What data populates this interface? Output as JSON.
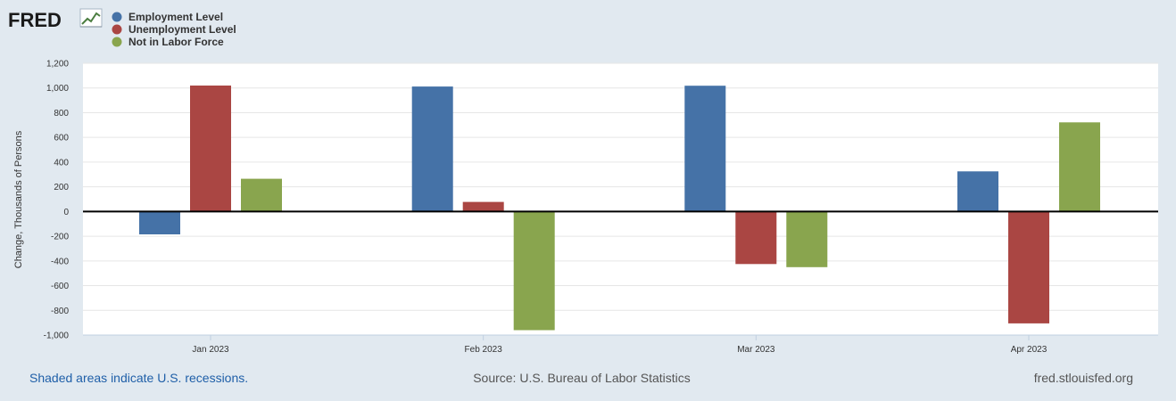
{
  "branding": {
    "logo_text": "FRED"
  },
  "colors": {
    "background": "#e1e9f0",
    "plot_background": "#ffffff",
    "grid": "#e6e6e6",
    "zero_line": "#000000",
    "link": "#1f5fa8"
  },
  "footer": {
    "recession_note": "Shaded areas indicate U.S. recessions.",
    "source": "Source: U.S. Bureau of Labor Statistics",
    "site": "fred.stlouisfed.org"
  },
  "chart_data": {
    "type": "bar",
    "title": "",
    "xlabel": "",
    "ylabel": "Change, Thousands of Persons",
    "ylim": [
      -1000,
      1200
    ],
    "yticks": [
      1200,
      1000,
      800,
      600,
      400,
      200,
      0,
      -200,
      -400,
      -600,
      -800,
      -1000
    ],
    "ytick_labels": [
      "1,200",
      "1,000",
      "800",
      "600",
      "400",
      "200",
      "0",
      "-200",
      "-400",
      "-600",
      "-800",
      "-1,000"
    ],
    "categories": [
      "Jan 2023",
      "Feb 2023",
      "Mar 2023",
      "Apr 2023"
    ],
    "legend_position": "top-left",
    "grid": true,
    "series": [
      {
        "name": "Employment Level",
        "color": "#4572a7",
        "values": [
          -185,
          1012,
          1018,
          325
        ]
      },
      {
        "name": "Unemployment Level",
        "color": "#aa4643",
        "values": [
          1020,
          78,
          -425,
          -905
        ]
      },
      {
        "name": "Not in Labor Force",
        "color": "#89a54e",
        "values": [
          265,
          -960,
          -450,
          722
        ]
      }
    ]
  }
}
